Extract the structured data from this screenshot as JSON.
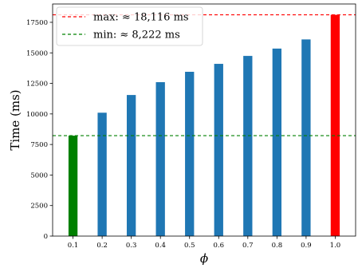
{
  "chart_data": {
    "type": "bar",
    "categories": [
      "0.1",
      "0.2",
      "0.3",
      "0.4",
      "0.5",
      "0.6",
      "0.7",
      "0.8",
      "0.9",
      "1.0"
    ],
    "values": [
      8222,
      10100,
      11550,
      12600,
      13450,
      14100,
      14750,
      15350,
      16100,
      18116
    ],
    "bar_colors": [
      "#008000",
      "#1f77b4",
      "#1f77b4",
      "#1f77b4",
      "#1f77b4",
      "#1f77b4",
      "#1f77b4",
      "#1f77b4",
      "#1f77b4",
      "#ff0000"
    ],
    "xlabel": "ϕ",
    "ylabel": "Time (ms)",
    "ylim": [
      0,
      19000
    ],
    "yticks": [
      0,
      2500,
      5000,
      7500,
      10000,
      12500,
      15000,
      17500
    ],
    "grid": false,
    "reference_lines": [
      {
        "label": "max: ≈ 18,116 ms",
        "value": 18116,
        "color": "#ff0000",
        "style": "dashed"
      },
      {
        "label": "min: ≈ 8,222 ms",
        "value": 8222,
        "color": "#008000",
        "style": "dashed"
      }
    ],
    "legend_position": "top-left"
  }
}
